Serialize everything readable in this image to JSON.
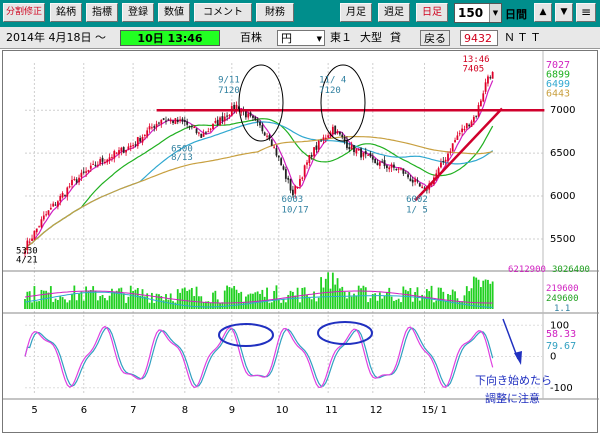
{
  "toolbar": {
    "buttons": [
      {
        "label": "分割修正",
        "red": true
      },
      {
        "label": "銘柄",
        "red": false
      },
      {
        "label": "指標",
        "red": false
      },
      {
        "label": "登録",
        "red": false
      },
      {
        "label": "数値",
        "red": false
      },
      {
        "label": "コメント",
        "red": false
      },
      {
        "label": "財務",
        "red": false
      },
      {
        "label": "月足",
        "red": false
      },
      {
        "label": "週足",
        "red": false
      },
      {
        "label": "日足",
        "red": true
      }
    ],
    "period_value": "150",
    "period_unit": "日間",
    "nav": {
      "up": "▲",
      "down": "▼",
      "menu": "≡"
    }
  },
  "infobar": {
    "date": "2014年 4月18日 〜",
    "time_box": "10日 13:46",
    "unit": "百株",
    "currency": "円",
    "market": "東１",
    "size_class": "大型",
    "margin": "貸",
    "back_button": "戻る",
    "code": "9432",
    "name": "ＮＴＴ"
  },
  "colors": {
    "toolbar": "#008e8c",
    "candle_up": "#e0002a",
    "candle_down": "#202020",
    "ma_short": "#d020c0",
    "ma_mid": "#20b020",
    "ma_long": "#30a8d0",
    "ma_longest": "#c8a040",
    "resistance": "#d0002c",
    "volume": "#20d020",
    "stoch_k": "#e040e0",
    "stoch_d": "#30a0c0",
    "ellipse_blue": "#2030c0"
  },
  "chart_data": {
    "type": "candlestick",
    "x_month_labels": [
      {
        "label": "5",
        "index": 4
      },
      {
        "label": "6",
        "index": 25
      },
      {
        "label": "7",
        "index": 46
      },
      {
        "label": "8",
        "index": 68
      },
      {
        "label": "9",
        "index": 88
      },
      {
        "label": "10",
        "index": 108
      },
      {
        "label": "11",
        "index": 129
      },
      {
        "label": "12",
        "index": 148
      },
      {
        "label": "15/ 1",
        "index": 170
      }
    ],
    "price_axis": {
      "ticks": [
        5500,
        6000,
        6500,
        7000
      ],
      "range": [
        5150,
        7550
      ]
    },
    "oscillator_axis": {
      "ticks": [
        100,
        0,
        -100
      ],
      "range": [
        -120,
        120
      ]
    },
    "keypoints": [
      {
        "i": 0,
        "p": 5400
      },
      {
        "i": 8,
        "p": 5750
      },
      {
        "i": 20,
        "p": 6150
      },
      {
        "i": 32,
        "p": 6400
      },
      {
        "i": 46,
        "p": 6600
      },
      {
        "i": 58,
        "p": 6900
      },
      {
        "i": 68,
        "p": 6850
      },
      {
        "i": 75,
        "p": 6700
      },
      {
        "i": 90,
        "p": 7050
      },
      {
        "i": 104,
        "p": 6700
      },
      {
        "i": 114,
        "p": 6020
      },
      {
        "i": 122,
        "p": 6500
      },
      {
        "i": 131,
        "p": 6800
      },
      {
        "i": 137,
        "p": 6600
      },
      {
        "i": 148,
        "p": 6400
      },
      {
        "i": 160,
        "p": 6300
      },
      {
        "i": 170,
        "p": 6050
      },
      {
        "i": 176,
        "p": 6300
      },
      {
        "i": 184,
        "p": 6700
      },
      {
        "i": 192,
        "p": 6950
      },
      {
        "i": 197,
        "p": 7400
      }
    ],
    "resistance_line": {
      "price": 7000,
      "from_index": 56,
      "to_index": 204
    },
    "support_trendline": {
      "from": {
        "i": 166,
        "p": 5950
      },
      "to": {
        "i": 203,
        "p": 7020
      }
    },
    "annotations": [
      {
        "text": "5330",
        "i": 0,
        "p": 5330,
        "color": "#000000"
      },
      {
        "text": "4/21",
        "i": 0,
        "p": 5225,
        "color": "#000000"
      },
      {
        "text": "6500",
        "i": 66,
        "p": 6520,
        "color": "#3080a0"
      },
      {
        "text": "8/13",
        "i": 66,
        "p": 6420,
        "color": "#3080a0"
      },
      {
        "text": "9/11",
        "i": 86,
        "p": 7320,
        "color": "#3080a0"
      },
      {
        "text": "7120",
        "i": 86,
        "p": 7200,
        "color": "#3080a0"
      },
      {
        "text": "11/ 4",
        "i": 129,
        "p": 7320,
        "color": "#3080a0"
      },
      {
        "text": "7120",
        "i": 129,
        "p": 7200,
        "color": "#3080a0"
      },
      {
        "text": "6003",
        "i": 113,
        "p": 5930,
        "color": "#3080a0"
      },
      {
        "text": "10/17",
        "i": 113,
        "p": 5810,
        "color": "#3080a0"
      },
      {
        "text": "6002",
        "i": 166,
        "p": 5930,
        "color": "#3080a0"
      },
      {
        "text": "1/ 5",
        "i": 166,
        "p": 5810,
        "color": "#3080a0"
      },
      {
        "text": "13:46",
        "i": 190,
        "p": 7560,
        "color": "#d00020"
      },
      {
        "text": "7405",
        "i": 190,
        "p": 7450,
        "color": "#d00020"
      }
    ],
    "price_labels": [
      {
        "text": "7027",
        "p": 7490,
        "color": "#d020c0"
      },
      {
        "text": "6899",
        "p": 7380,
        "color": "#20b020"
      },
      {
        "text": "6499",
        "p": 7270,
        "color": "#30a8d0"
      },
      {
        "text": "6443",
        "p": 7160,
        "color": "#c8a040"
      }
    ],
    "volume_labels": [
      {
        "text": "6212900",
        "color": "#d020c0"
      },
      {
        "text": "3026400",
        "color": "#20a020"
      },
      {
        "text": "219600",
        "color": "#d020c0"
      },
      {
        "text": "249600",
        "color": "#20a020"
      },
      {
        "text": "1.1",
        "color": "#3080a0"
      }
    ],
    "oscillator_labels": [
      {
        "text": "58.33",
        "color": "#d020c0"
      },
      {
        "text": "79.67",
        "color": "#30a0c0"
      }
    ],
    "note_line1": "下向き始めたら",
    "note_line2": "調整に注意"
  }
}
